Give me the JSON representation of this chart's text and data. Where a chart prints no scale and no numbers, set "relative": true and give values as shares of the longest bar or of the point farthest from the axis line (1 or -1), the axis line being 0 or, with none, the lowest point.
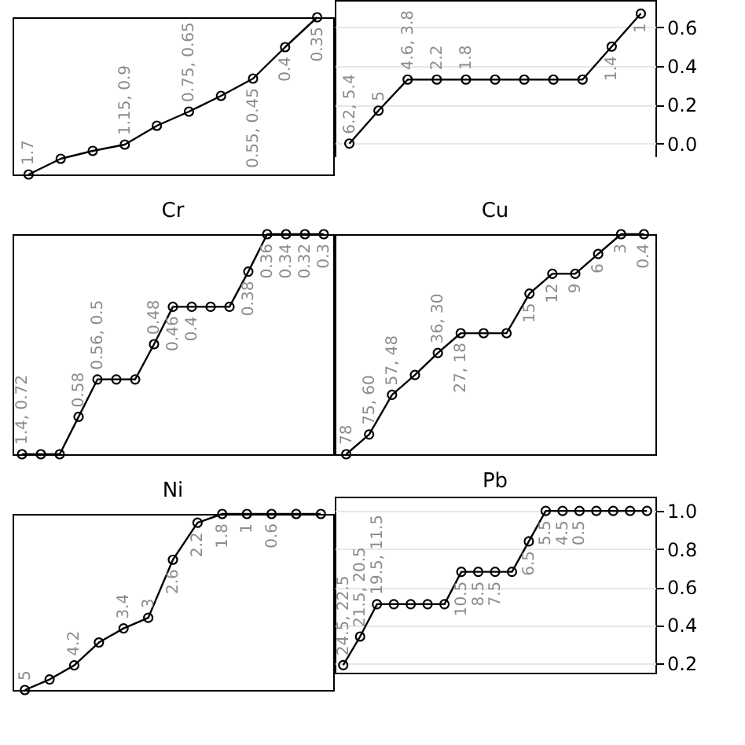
{
  "chart_data": [
    {
      "type": "line",
      "marker": "circle",
      "relative": true,
      "tick_labels": false,
      "categories": [
        null,
        null,
        null,
        null,
        null,
        null,
        null,
        null,
        null,
        null
      ],
      "series": [
        {
          "color": "#000000",
          "values": [
            0,
            0.1,
            0.15,
            0.19,
            0.31,
            0.4,
            0.5,
            0.61,
            0.81,
            1
          ]
        }
      ],
      "annotations": [
        {
          "text": "1.7",
          "y": 0
        },
        {
          "text": "1.15, 0.9",
          "y": 0.19
        },
        {
          "text": "0.75, 0.65",
          "y": 0.4
        },
        {
          "text": "0.55, 0.45",
          "y": 0.61
        },
        {
          "text": "0.4",
          "y": 0.81
        },
        {
          "text": "0.35",
          "y": 1
        }
      ]
    },
    {
      "type": "line",
      "marker": "circle",
      "grid": "y",
      "tick_labels": "y",
      "categories": [
        null,
        null,
        null,
        null,
        null,
        null,
        null,
        null,
        null,
        null,
        null
      ],
      "ylim": [
        -0.07,
        0.74
      ],
      "yticks": [
        {
          "value": 0,
          "label": "0.0"
        },
        {
          "value": 0.2,
          "label": "0.2"
        },
        {
          "value": 0.4,
          "label": "0.4"
        },
        {
          "value": 0.6,
          "label": "0.6"
        }
      ],
      "series": [
        {
          "color": "#000000",
          "values": [
            0,
            0.17,
            0.33,
            0.33,
            0.33,
            0.33,
            0.33,
            0.33,
            0.33,
            0.5,
            0.67
          ]
        }
      ],
      "annotations": [
        {
          "text": "6.2, 5.4",
          "y": 0
        },
        {
          "text": "5",
          "y": 0.17
        },
        {
          "text": "4.6, 3.8",
          "y": 0.33
        },
        {
          "text": "2.2",
          "y": 0.33
        },
        {
          "text": "1.8",
          "y": 0.33
        },
        {
          "text": "1.4",
          "y": 0.5
        },
        {
          "text": "1",
          "y": 0.67
        }
      ]
    },
    {
      "type": "line",
      "title": "Cr",
      "marker": "circle",
      "relative": true,
      "tick_labels": false,
      "categories": [
        null,
        null,
        null,
        null,
        null,
        null,
        null,
        null,
        null,
        null,
        null,
        null,
        null,
        null,
        null,
        null,
        null
      ],
      "series": [
        {
          "color": "#000000",
          "values": [
            0,
            0,
            0,
            0.17,
            0.34,
            0.34,
            0.34,
            0.5,
            0.67,
            0.67,
            0.67,
            0.67,
            0.83,
            1,
            1,
            1,
            1
          ]
        }
      ],
      "annotations": [
        {
          "text": "1.4, 0.72",
          "y": 0
        },
        {
          "text": "0.58",
          "y": 0.17
        },
        {
          "text": "0.56, 0.5",
          "y": 0.34
        },
        {
          "text": "0.48",
          "y": 0.5
        },
        {
          "text": "0.46",
          "y": 0.67
        },
        {
          "text": "0.4",
          "y": 0.67
        },
        {
          "text": "0.38",
          "y": 0.83
        },
        {
          "text": "0.36",
          "y": 1
        },
        {
          "text": "0.34",
          "y": 1
        },
        {
          "text": "0.32",
          "y": 1
        },
        {
          "text": "0.3",
          "y": 1
        }
      ]
    },
    {
      "type": "line",
      "title": "Cu",
      "marker": "circle",
      "relative": true,
      "tick_labels": false,
      "categories": [
        null,
        null,
        null,
        null,
        null,
        null,
        null,
        null,
        null,
        null,
        null,
        null,
        null,
        null
      ],
      "series": [
        {
          "color": "#000000",
          "values": [
            0,
            0.09,
            0.27,
            0.36,
            0.46,
            0.55,
            0.55,
            0.55,
            0.73,
            0.82,
            0.82,
            0.91,
            1,
            1
          ]
        }
      ],
      "annotations": [
        {
          "text": "78",
          "y": 0
        },
        {
          "text": "75, 60",
          "y": 0.09
        },
        {
          "text": "57, 48",
          "y": 0.27
        },
        {
          "text": "36, 30",
          "y": 0.46
        },
        {
          "text": "27, 18",
          "y": 0.55
        },
        {
          "text": "15",
          "y": 0.73
        },
        {
          "text": "12",
          "y": 0.82
        },
        {
          "text": "9",
          "y": 0.82
        },
        {
          "text": "6",
          "y": 0.91
        },
        {
          "text": "3",
          "y": 1
        },
        {
          "text": "0.4",
          "y": 1
        }
      ]
    },
    {
      "type": "line",
      "title": "Ni",
      "marker": "circle",
      "relative": true,
      "tick_labels": false,
      "categories": [
        null,
        null,
        null,
        null,
        null,
        null,
        null,
        null,
        null,
        null,
        null,
        null,
        null
      ],
      "series": [
        {
          "color": "#000000",
          "values": [
            0,
            0.06,
            0.14,
            0.27,
            0.35,
            0.41,
            0.74,
            0.95,
            1,
            1,
            1,
            1,
            1
          ]
        }
      ],
      "annotations": [
        {
          "text": "5",
          "y": 0
        },
        {
          "text": "4.2",
          "y": 0.14
        },
        {
          "text": "3.4",
          "y": 0.35
        },
        {
          "text": "3",
          "y": 0.41
        },
        {
          "text": "2.6",
          "y": 0.74
        },
        {
          "text": "2.2",
          "y": 0.95
        },
        {
          "text": "1.8",
          "y": 1
        },
        {
          "text": "1",
          "y": 1
        },
        {
          "text": "0.6",
          "y": 1
        }
      ]
    },
    {
      "type": "line",
      "title": "Pb",
      "marker": "circle",
      "grid": "y",
      "tick_labels": "y",
      "categories": [
        null,
        null,
        null,
        null,
        null,
        null,
        null,
        null,
        null,
        null,
        null,
        null,
        null,
        null,
        null,
        null,
        null,
        null,
        null
      ],
      "ylim": [
        0.15,
        1.075
      ],
      "yticks": [
        {
          "value": 0.2,
          "label": "0.2"
        },
        {
          "value": 0.4,
          "label": "0.4"
        },
        {
          "value": 0.6,
          "label": "0.6"
        },
        {
          "value": 0.8,
          "label": "0.8"
        },
        {
          "value": 1,
          "label": "1.0"
        }
      ],
      "series": [
        {
          "color": "#000000",
          "values": [
            0.19,
            0.34,
            0.51,
            0.51,
            0.51,
            0.51,
            0.51,
            0.68,
            0.68,
            0.68,
            0.68,
            0.84,
            1,
            1,
            1,
            1,
            1,
            1,
            1
          ]
        }
      ],
      "annotations": [
        {
          "text": "24.5, 22.5",
          "y": 0.19
        },
        {
          "text": "21.5, 20.5",
          "y": 0.34
        },
        {
          "text": "19.5, 11.5",
          "y": 0.51
        },
        {
          "text": "10.5",
          "y": 0.68
        },
        {
          "text": "8.5",
          "y": 0.68
        },
        {
          "text": "7.5",
          "y": 0.68
        },
        {
          "text": "6.5",
          "y": 0.84
        },
        {
          "text": "5.5",
          "y": 1
        },
        {
          "text": "4.5",
          "y": 1
        },
        {
          "text": "0.5",
          "y": 1
        }
      ]
    }
  ]
}
